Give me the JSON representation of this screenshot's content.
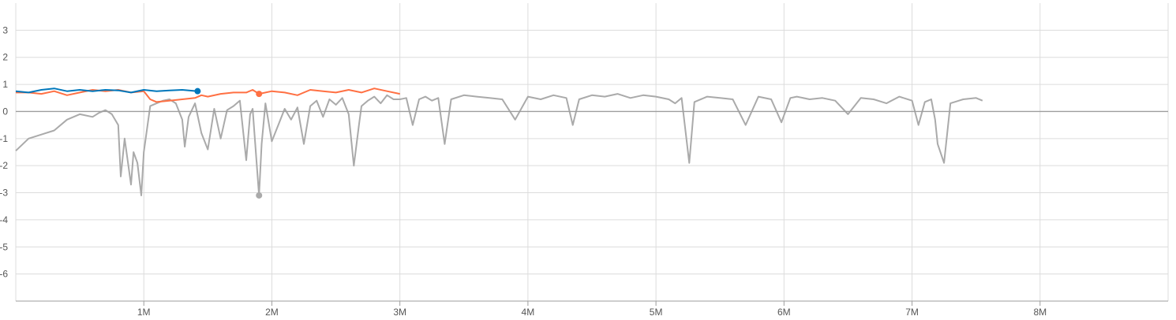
{
  "chart_data": {
    "type": "line",
    "title": "",
    "xlabel": "",
    "ylabel": "",
    "xlim": [
      0,
      9000000
    ],
    "ylim": [
      -7,
      4
    ],
    "grid": true,
    "x_ticks": [
      {
        "value": 1000000,
        "label": "1M"
      },
      {
        "value": 2000000,
        "label": "2M"
      },
      {
        "value": 3000000,
        "label": "3M"
      },
      {
        "value": 4000000,
        "label": "4M"
      },
      {
        "value": 5000000,
        "label": "5M"
      },
      {
        "value": 6000000,
        "label": "6M"
      },
      {
        "value": 7000000,
        "label": "7M"
      },
      {
        "value": 8000000,
        "label": "8M"
      }
    ],
    "y_ticks": [
      {
        "value": 3,
        "label": "3"
      },
      {
        "value": 2,
        "label": "2"
      },
      {
        "value": 1,
        "label": "1"
      },
      {
        "value": 0,
        "label": "0"
      },
      {
        "value": -1,
        "label": "-1"
      },
      {
        "value": -2,
        "label": "-2"
      },
      {
        "value": -3,
        "label": "-3"
      },
      {
        "value": -4,
        "label": "-4"
      },
      {
        "value": -5,
        "label": "-5"
      },
      {
        "value": -6,
        "label": "-6"
      }
    ],
    "series": [
      {
        "color": "#aaaaaa",
        "raw_color": "#e6e6e6",
        "marker_x": 1900000,
        "x": [
          0,
          100000,
          200000,
          300000,
          400000,
          500000,
          600000,
          650000,
          700000,
          750000,
          800000,
          820000,
          850000,
          900000,
          920000,
          950000,
          980000,
          1000000,
          1050000,
          1100000,
          1150000,
          1200000,
          1250000,
          1300000,
          1320000,
          1350000,
          1400000,
          1450000,
          1500000,
          1550000,
          1600000,
          1650000,
          1700000,
          1750000,
          1800000,
          1830000,
          1850000,
          1900000,
          1920000,
          1950000,
          2000000,
          2050000,
          2100000,
          2150000,
          2200000,
          2250000,
          2300000,
          2350000,
          2400000,
          2450000,
          2500000,
          2550000,
          2600000,
          2640000,
          2680000,
          2700000,
          2750000,
          2800000,
          2850000,
          2900000,
          2950000,
          3000000,
          3050000,
          3100000,
          3150000,
          3200000,
          3250000,
          3300000,
          3350000,
          3400000,
          3500000,
          3600000,
          3700000,
          3800000,
          3900000,
          4000000,
          4100000,
          4200000,
          4300000,
          4350000,
          4400000,
          4500000,
          4600000,
          4700000,
          4800000,
          4900000,
          5000000,
          5100000,
          5150000,
          5200000,
          5260000,
          5300000,
          5400000,
          5500000,
          5600000,
          5700000,
          5800000,
          5900000,
          5980000,
          6050000,
          6100000,
          6200000,
          6300000,
          6400000,
          6500000,
          6600000,
          6700000,
          6800000,
          6900000,
          7000000,
          7050000,
          7100000,
          7150000,
          7180000,
          7200000,
          7250000,
          7300000,
          7400000,
          7500000,
          7550000
        ],
        "values": [
          -1.45,
          -1.0,
          -0.85,
          -0.7,
          -0.3,
          -0.1,
          -0.2,
          -0.05,
          0.05,
          -0.1,
          -0.5,
          -2.4,
          -1.0,
          -2.7,
          -1.5,
          -1.9,
          -3.1,
          -1.5,
          0.2,
          0.3,
          0.4,
          0.45,
          0.3,
          -0.3,
          -1.3,
          -0.2,
          0.3,
          -0.8,
          -1.4,
          0.1,
          -1.0,
          0.05,
          0.2,
          0.4,
          -1.8,
          -0.1,
          0.1,
          -3.1,
          -1.2,
          0.3,
          -1.1,
          -0.5,
          0.1,
          -0.3,
          0.15,
          -1.2,
          0.2,
          0.4,
          -0.2,
          0.45,
          0.25,
          0.5,
          -0.1,
          -2.0,
          -0.5,
          0.2,
          0.4,
          0.55,
          0.3,
          0.6,
          0.45,
          0.45,
          0.5,
          -0.5,
          0.45,
          0.55,
          0.4,
          0.5,
          -1.2,
          0.45,
          0.6,
          0.55,
          0.5,
          0.45,
          -0.3,
          0.55,
          0.45,
          0.6,
          0.5,
          -0.5,
          0.45,
          0.6,
          0.55,
          0.65,
          0.5,
          0.6,
          0.55,
          0.45,
          0.3,
          0.5,
          -1.9,
          0.35,
          0.55,
          0.5,
          0.45,
          -0.5,
          0.55,
          0.45,
          -0.4,
          0.5,
          0.55,
          0.45,
          0.5,
          0.4,
          -0.1,
          0.5,
          0.45,
          0.3,
          0.55,
          0.4,
          -0.5,
          0.35,
          0.45,
          -0.3,
          -1.2,
          -1.9,
          0.3,
          0.45,
          0.5,
          0.4
        ]
      },
      {
        "color": "#ff7043",
        "marker_x": 1900000,
        "x": [
          0,
          100000,
          200000,
          300000,
          400000,
          500000,
          600000,
          700000,
          800000,
          900000,
          1000000,
          1050000,
          1100000,
          1200000,
          1300000,
          1400000,
          1450000,
          1500000,
          1600000,
          1700000,
          1800000,
          1850000,
          1900000,
          2000000,
          2100000,
          2200000,
          2300000,
          2400000,
          2500000,
          2600000,
          2700000,
          2800000,
          2900000,
          3000000
        ],
        "values": [
          0.7,
          0.7,
          0.65,
          0.75,
          0.6,
          0.7,
          0.8,
          0.75,
          0.8,
          0.7,
          0.75,
          0.45,
          0.35,
          0.4,
          0.45,
          0.5,
          0.6,
          0.55,
          0.65,
          0.7,
          0.7,
          0.8,
          0.65,
          0.75,
          0.7,
          0.6,
          0.8,
          0.75,
          0.7,
          0.8,
          0.7,
          0.85,
          0.75,
          0.65
        ]
      },
      {
        "color": "#0077bb",
        "marker_x": 1420000,
        "x": [
          0,
          100000,
          200000,
          300000,
          400000,
          500000,
          600000,
          700000,
          800000,
          900000,
          1000000,
          1100000,
          1200000,
          1300000,
          1420000
        ],
        "values": [
          0.75,
          0.7,
          0.8,
          0.85,
          0.75,
          0.8,
          0.75,
          0.8,
          0.78,
          0.7,
          0.8,
          0.75,
          0.78,
          0.8,
          0.75
        ]
      }
    ]
  }
}
